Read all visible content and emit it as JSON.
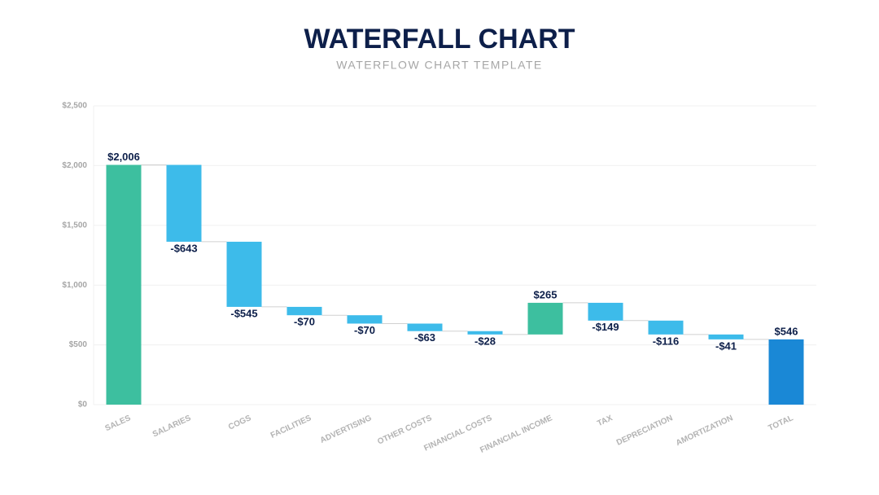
{
  "chart_data": {
    "type": "waterfall",
    "title": "WATERFALL CHART",
    "subtitle": "WATERFLOW CHART TEMPLATE",
    "categories": [
      "SALES",
      "SALARIES",
      "COGS",
      "FACILITIES",
      "ADVERTISING",
      "OTHER COSTS",
      "FINANCIAL COSTS",
      "FINANCIAL INCOME",
      "TAX",
      "DEPRECIATION",
      "AMORTIZATION",
      "TOTAL"
    ],
    "values": [
      2006,
      -643,
      -545,
      -70,
      -70,
      -63,
      -28,
      265,
      -149,
      -116,
      -41,
      546
    ],
    "value_labels": [
      "$2,006",
      "-$643",
      "-$545",
      "-$70",
      "-$70",
      "-$63",
      "-$28",
      "$265",
      "-$149",
      "-$116",
      "-$41",
      "$546"
    ],
    "last_is_total": true,
    "increase_color": "#3dbf9f",
    "decrease_color": "#3dbbea",
    "total_color": "#1a88d6",
    "ylim": [
      0,
      2500
    ],
    "yticks": [
      {
        "value": 0,
        "label": "$0"
      },
      {
        "value": 500,
        "label": "$500"
      },
      {
        "value": 1000,
        "label": "$1,000"
      },
      {
        "value": 1500,
        "label": "$1,500"
      },
      {
        "value": 2000,
        "label": "$2,000"
      },
      {
        "value": 2500,
        "label": "$2,500"
      }
    ],
    "grid": true
  }
}
